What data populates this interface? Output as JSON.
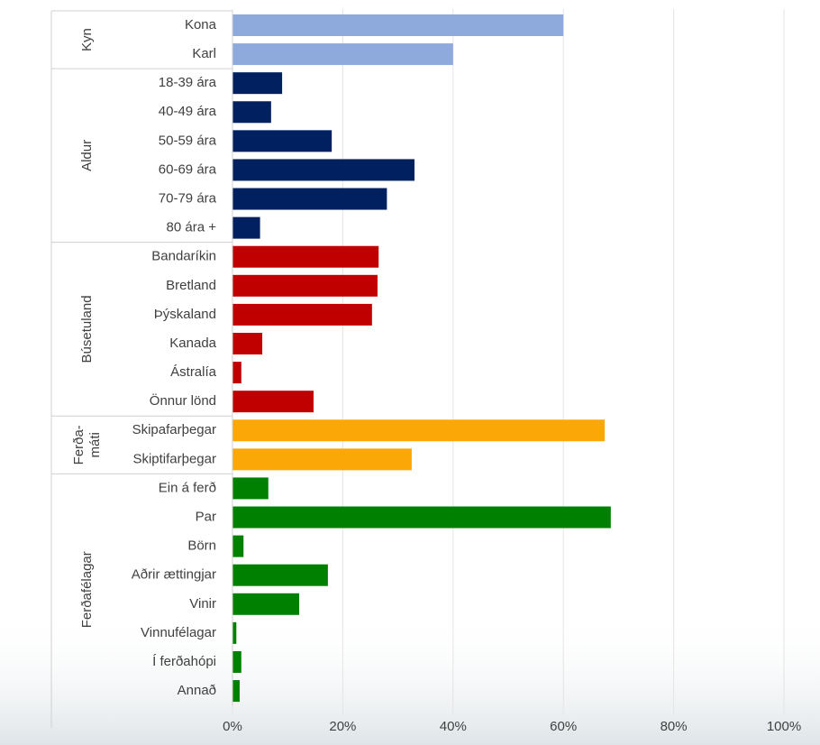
{
  "chart_data": {
    "type": "grouped_hbar",
    "groups": [
      {
        "name": "Kyn",
        "color": "#8eaadc",
        "categories": [
          "Kona",
          "Karl"
        ],
        "values": [
          60,
          40
        ]
      },
      {
        "name": "Aldur",
        "color": "#002060",
        "categories": [
          "18-39 ára",
          "40-49 ára",
          "50-59 ára",
          "60-69 ára",
          "70-79 ára",
          "80 ára +"
        ],
        "values": [
          9,
          7,
          18,
          33,
          28,
          5
        ]
      },
      {
        "name": "Búsetuland",
        "color": "#c00000",
        "categories": [
          "Bandaríkin",
          "Bretland",
          "Þýskaland",
          "Kanada",
          "Ástralía",
          "Önnur lönd"
        ],
        "values": [
          26.5,
          26.3,
          25.3,
          5.4,
          1.6,
          14.7
        ]
      },
      {
        "name": "Ferða-\nmáti",
        "color": "#fba707",
        "categories": [
          "Skipafarþegar",
          "Skiptifarþegar"
        ],
        "values": [
          67.5,
          32.5
        ]
      },
      {
        "name": "Ferðafélagar",
        "color": "#008000",
        "categories": [
          "Ein á ferð",
          "Par",
          "Börn",
          "Aðrir ættingjar",
          "Vinir",
          "Vinnufélagar",
          "Í ferðahópi",
          "Annað"
        ],
        "values": [
          6.5,
          68.6,
          2,
          17.3,
          12.1,
          0.7,
          1.6,
          1.3
        ]
      }
    ],
    "xlim": [
      0,
      100
    ],
    "xticks": [
      {
        "value": 0,
        "label": "0%"
      },
      {
        "value": 20,
        "label": "20%"
      },
      {
        "value": 40,
        "label": "40%"
      },
      {
        "value": 60,
        "label": "60%"
      },
      {
        "value": 80,
        "label": "80%"
      },
      {
        "value": 100,
        "label": "100%"
      }
    ],
    "grid": true
  }
}
